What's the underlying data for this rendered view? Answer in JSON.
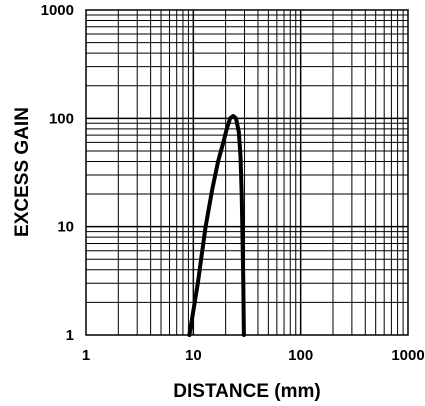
{
  "chart_data": {
    "type": "line",
    "title": "",
    "xlabel": "DISTANCE (mm)",
    "ylabel": "EXCESS GAIN",
    "x_scale": "log",
    "y_scale": "log",
    "xlim": [
      1,
      1000
    ],
    "ylim": [
      1,
      1000
    ],
    "x_ticks": [
      "1",
      "10",
      "100",
      "1000"
    ],
    "y_ticks": [
      "1",
      "10",
      "100",
      "1000"
    ],
    "grid": true,
    "series": [
      {
        "x": [
          9.2,
          11,
          13,
          15,
          17,
          19,
          20.5,
          22,
          23.5,
          25,
          26.5,
          27.5,
          28.2,
          28.7,
          29.2,
          29.6
        ],
        "y": [
          1,
          3,
          10,
          22,
          40,
          60,
          80,
          100,
          105,
          100,
          75,
          45,
          20,
          8,
          3,
          1
        ]
      }
    ]
  }
}
